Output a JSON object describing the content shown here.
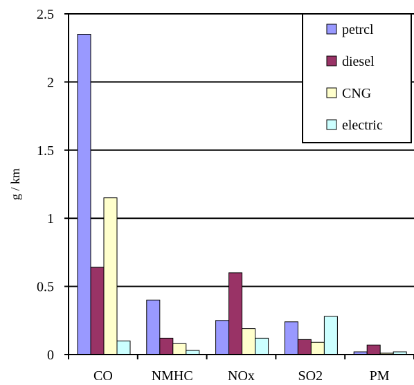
{
  "chart_data": {
    "type": "bar",
    "ylabel": "g / km",
    "ylim": [
      0,
      2.5
    ],
    "yticks": [
      "0",
      "0.5",
      "1",
      "1.5",
      "2",
      "2.5"
    ],
    "categories": [
      "CO",
      "NMHC",
      "NOx",
      "SO2",
      "PM"
    ],
    "series": [
      {
        "name": "petrcl",
        "color": "#9999ff",
        "values": [
          2.35,
          0.4,
          0.25,
          0.24,
          0.02
        ]
      },
      {
        "name": "diesel",
        "color": "#993366",
        "values": [
          0.64,
          0.12,
          0.6,
          0.11,
          0.07
        ]
      },
      {
        "name": "CNG",
        "color": "#ffffcc",
        "values": [
          1.15,
          0.08,
          0.19,
          0.09,
          0.01
        ]
      },
      {
        "name": "electric",
        "color": "#ccffff",
        "values": [
          0.1,
          0.03,
          0.12,
          0.28,
          0.02
        ]
      }
    ],
    "gridlines": true,
    "legend_position": "top-right"
  }
}
